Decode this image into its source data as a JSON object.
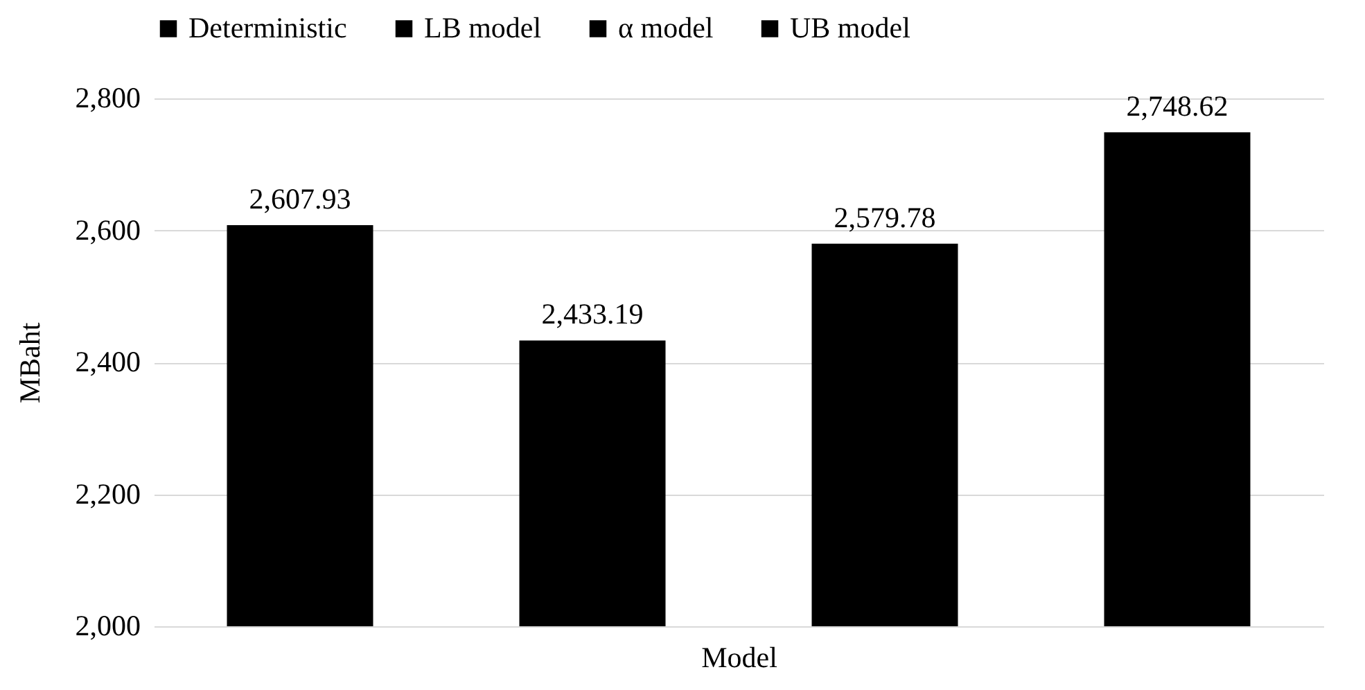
{
  "chart_data": {
    "type": "bar",
    "xlabel": "Model",
    "ylabel": "MBaht",
    "categories": [
      null,
      null,
      null,
      null
    ],
    "series": [
      {
        "name": "Deterministic",
        "color": "#000000",
        "values": [
          2607.93,
          null,
          null,
          null
        ],
        "value_labels": [
          "2,607.93",
          null,
          null,
          null
        ]
      },
      {
        "name": "LB model",
        "color": "#000000",
        "values": [
          null,
          2433.19,
          null,
          null
        ],
        "value_labels": [
          null,
          "2,433.19",
          null,
          null
        ]
      },
      {
        "name": "α model",
        "color": "#000000",
        "values": [
          null,
          null,
          2579.78,
          null
        ],
        "value_labels": [
          null,
          null,
          "2,579.78",
          null
        ]
      },
      {
        "name": "UB model",
        "color": "#000000",
        "values": [
          null,
          null,
          null,
          2748.62
        ],
        "value_labels": [
          null,
          null,
          null,
          "2,748.62"
        ]
      }
    ],
    "ylim": [
      2000,
      2800
    ],
    "yticks": [
      {
        "value": 2000,
        "label": "2,000"
      },
      {
        "value": 2200,
        "label": "2,200"
      },
      {
        "value": 2400,
        "label": "2,400"
      },
      {
        "value": 2600,
        "label": "2,600"
      },
      {
        "value": 2800,
        "label": "2,800"
      }
    ],
    "grid": "y",
    "legend": "top",
    "tick_labels": "y"
  }
}
